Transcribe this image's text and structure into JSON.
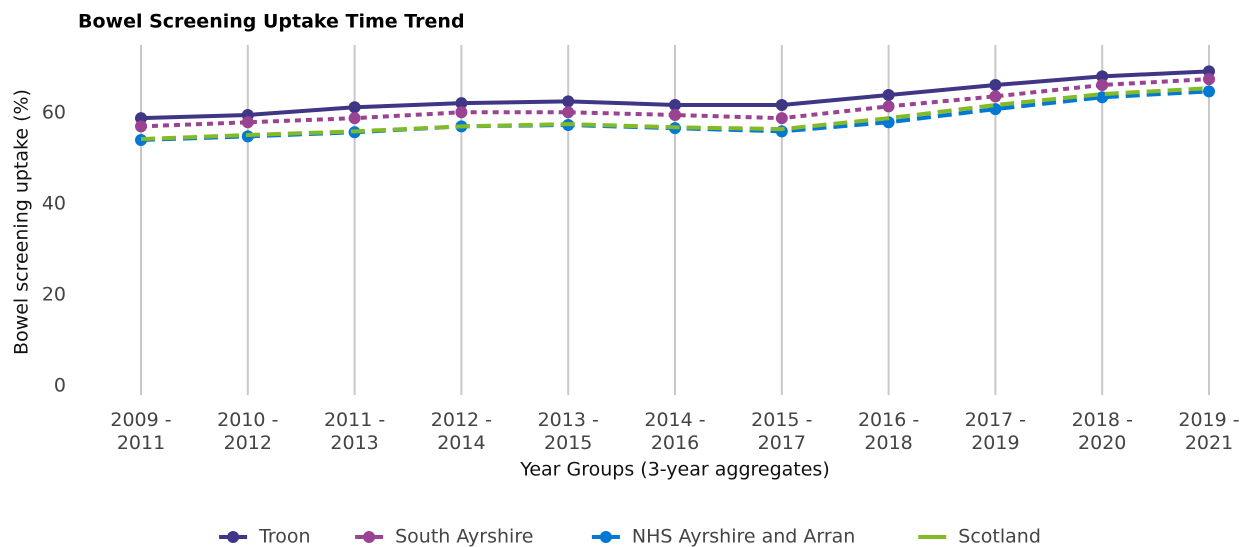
{
  "chart_data": {
    "type": "line",
    "title": "Bowel Screening Uptake Time Trend",
    "x_label": "Year Groups (3-year aggregates)",
    "y_label": "Bowel screening uptake (%)",
    "categories": [
      "2009 -\n2011",
      "2010 -\n2012",
      "2011 -\n2013",
      "2012 -\n2014",
      "2013 -\n2015",
      "2014 -\n2016",
      "2015 -\n2017",
      "2016 -\n2018",
      "2017 -\n2019",
      "2018 -\n2020",
      "2019 -\n2021"
    ],
    "series": [
      {
        "name": "Troon",
        "color": "#3f3685",
        "dash": "solid",
        "markers": true,
        "values": [
          58.9,
          59.6,
          61.3,
          62.2,
          62.6,
          61.8,
          61.8,
          64.0,
          66.2,
          68.1,
          69.2
        ]
      },
      {
        "name": "South Ayrshire",
        "color": "#9b4393",
        "dash": "dotted",
        "markers": true,
        "values": [
          57.1,
          58.0,
          58.9,
          60.2,
          60.2,
          59.6,
          58.9,
          61.5,
          63.7,
          66.2,
          67.5
        ]
      },
      {
        "name": "NHS Ayrshire and Arran",
        "color": "#0078d4",
        "dash": "dashed",
        "markers": true,
        "values": [
          54.1,
          54.9,
          55.8,
          57.1,
          57.4,
          56.7,
          56.0,
          58.0,
          60.9,
          63.5,
          64.8
        ]
      },
      {
        "name": "Scotland",
        "color": "#83bb26",
        "dash": "dashed",
        "markers": false,
        "values": [
          54.3,
          55.2,
          56.0,
          57.1,
          57.6,
          56.9,
          56.5,
          58.9,
          61.8,
          64.2,
          65.5
        ]
      }
    ],
    "ylim": [
      -2,
      75
    ],
    "yticks": [
      0,
      20,
      40,
      60
    ],
    "grid": "x",
    "legend": "bottom"
  }
}
